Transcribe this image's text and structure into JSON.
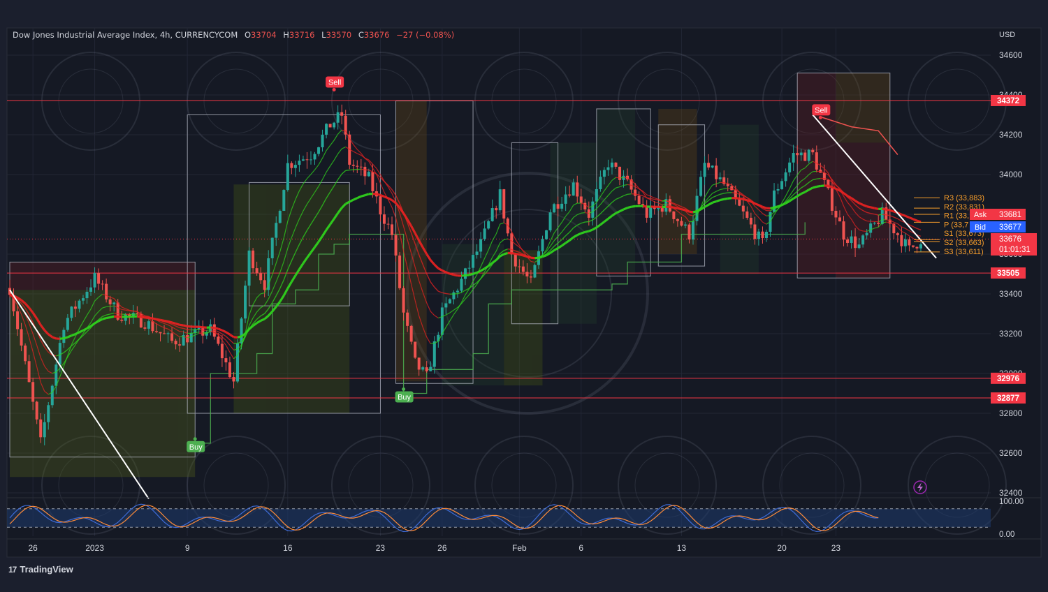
{
  "header": {
    "symbol": "Dow Jones Industrial Average Index, 4h, CURRENCYCOM",
    "open_label": "O",
    "open": "33704",
    "high_label": "H",
    "high": "33716",
    "low_label": "L",
    "low": "33570",
    "close_label": "C",
    "close": "33676",
    "change": "−27 (−0.08%)"
  },
  "currency": "USD",
  "brand": {
    "logo": "17",
    "name": "TradingView"
  },
  "chart_data": {
    "type": "candlestick",
    "instrument": "Dow Jones Industrial Average Index",
    "timeframe": "4h",
    "ylim": [
      32300,
      34700
    ],
    "y_ticks": [
      32400,
      32600,
      32800,
      33000,
      33200,
      33400,
      33600,
      33800,
      34000,
      34200,
      34400,
      34600
    ],
    "y_tick_labels": [
      "32400",
      "32600",
      "32800",
      "33000",
      "33200",
      "33400",
      "33600",
      "33800",
      "34000",
      "34200",
      "34400",
      "34600"
    ],
    "x_labels": [
      "26",
      "2023",
      "9",
      "16",
      "23",
      "26",
      "Feb",
      "6",
      "13",
      "20",
      "23"
    ],
    "grid": true,
    "close_path": [
      [
        0,
        33430
      ],
      [
        8,
        32650
      ],
      [
        14,
        33250
      ],
      [
        22,
        33480
      ],
      [
        28,
        33300
      ],
      [
        35,
        33260
      ],
      [
        42,
        33160
      ],
      [
        52,
        33220
      ],
      [
        58,
        32960
      ],
      [
        62,
        33600
      ],
      [
        66,
        33450
      ],
      [
        72,
        34050
      ],
      [
        78,
        34100
      ],
      [
        83,
        34250
      ],
      [
        86,
        34300
      ],
      [
        88,
        34060
      ],
      [
        93,
        33980
      ],
      [
        96,
        33820
      ],
      [
        99,
        33700
      ],
      [
        102,
        33300
      ],
      [
        105,
        33050
      ],
      [
        108,
        32980
      ],
      [
        112,
        33300
      ],
      [
        118,
        33500
      ],
      [
        122,
        33650
      ],
      [
        127,
        33900
      ],
      [
        130,
        33600
      ],
      [
        135,
        33450
      ],
      [
        140,
        33820
      ],
      [
        146,
        33950
      ],
      [
        150,
        33800
      ],
      [
        155,
        34060
      ],
      [
        160,
        33950
      ],
      [
        165,
        33800
      ],
      [
        170,
        33850
      ],
      [
        176,
        33700
      ],
      [
        180,
        34050
      ],
      [
        185,
        33950
      ],
      [
        190,
        33800
      ],
      [
        195,
        33650
      ],
      [
        198,
        33900
      ],
      [
        203,
        34100
      ],
      [
        208,
        34100
      ],
      [
        212,
        33900
      ],
      [
        216,
        33700
      ],
      [
        220,
        33640
      ],
      [
        226,
        33800
      ],
      [
        230,
        33700
      ],
      [
        233,
        33620
      ],
      [
        236,
        33676
      ]
    ],
    "horizontal_levels": [
      {
        "value": 34372,
        "label": "34372"
      },
      {
        "value": 33505,
        "label": "33505"
      },
      {
        "value": 32976,
        "label": "32976"
      },
      {
        "value": 32877,
        "label": "32877"
      }
    ],
    "pivots": [
      {
        "name": "R3",
        "value": 33883,
        "label": "R3 (33,883)"
      },
      {
        "name": "R2",
        "value": 33831,
        "label": "R2 (33,831)"
      },
      {
        "name": "R1",
        "value": 33800,
        "label": "R1 (33,"
      },
      {
        "name": "P",
        "value": 33760,
        "label": "P (33,7"
      },
      {
        "name": "S1",
        "value": 33673,
        "label": "S1 (33,673)"
      },
      {
        "name": "S2",
        "value": 33663,
        "label": "S2 (33,663)"
      },
      {
        "name": "S3",
        "value": 33611,
        "label": "S3 (33,611)"
      }
    ],
    "price_tags": [
      {
        "label": "Ask",
        "value": "33681",
        "value_num": 33681,
        "color": "#f23645"
      },
      {
        "label": "Bid",
        "value": "33677",
        "value_num": 33677,
        "color": "#2962ff"
      },
      {
        "label": "",
        "value": "33676",
        "value_num": 33676,
        "color": "#f23645",
        "countdown": "01:01:31"
      }
    ],
    "signals": [
      {
        "type": "Sell",
        "t": 84,
        "price": 34430
      },
      {
        "type": "Buy",
        "t": 48,
        "price": 32650
      },
      {
        "type": "Buy",
        "t": 102,
        "price": 32900
      },
      {
        "type": "Sell",
        "t": 210,
        "price": 34290
      }
    ],
    "oscillator": {
      "ylim": [
        0,
        100
      ],
      "labels": [
        "100.00",
        "0.00"
      ],
      "upper_band": 80,
      "lower_band": 20
    },
    "colors": {
      "bull": "#26a69a",
      "bear": "#ef5350",
      "level": "#f23645",
      "ema_up": "#2fd11d",
      "ema_down": "#e52222",
      "pivot": "#f89e2b",
      "osc_k": "#3e6bd6",
      "osc_d": "#ff8c3a"
    }
  }
}
